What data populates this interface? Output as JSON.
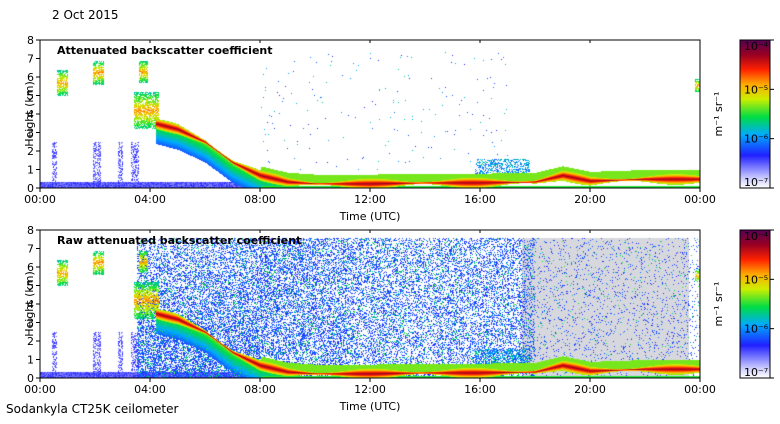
{
  "header": {
    "date": "2 Oct 2015"
  },
  "footer": {
    "instrument": "Sodankyla CT25K ceilometer"
  },
  "chart_data": [
    {
      "type": "heatmap",
      "title": "Attenuated backscatter coefficient",
      "xlabel": "Time (UTC)",
      "ylabel": "Height (km)",
      "xticks": [
        "00:00",
        "04:00",
        "08:00",
        "12:00",
        "16:00",
        "20:00",
        "00:00"
      ],
      "xlim_hours": [
        0,
        24
      ],
      "yticks": [
        0,
        1,
        2,
        3,
        4,
        5,
        6,
        7,
        8
      ],
      "ylim": [
        0,
        8
      ],
      "colorbar": {
        "label": "m⁻¹ sr⁻¹",
        "scale": "log",
        "range": [
          1e-07,
          0.0001
        ],
        "ticks": [
          "10⁻⁷",
          "10⁻⁶",
          "10⁻⁵",
          "10⁻⁴"
        ]
      },
      "features": {
        "boundary_layer": [
          {
            "t": 4.2,
            "h": 3.5
          },
          {
            "t": 5.0,
            "h": 3.2
          },
          {
            "t": 6.0,
            "h": 2.5
          },
          {
            "t": 7.0,
            "h": 1.4
          },
          {
            "t": 8.0,
            "h": 0.7
          },
          {
            "t": 9.0,
            "h": 0.35
          },
          {
            "t": 10.0,
            "h": 0.25
          },
          {
            "t": 12.0,
            "h": 0.25
          },
          {
            "t": 14.0,
            "h": 0.3
          },
          {
            "t": 16.0,
            "h": 0.3
          },
          {
            "t": 18.0,
            "h": 0.35
          },
          {
            "t": 19.0,
            "h": 0.7
          },
          {
            "t": 20.0,
            "h": 0.4
          },
          {
            "t": 22.0,
            "h": 0.5
          },
          {
            "t": 24.0,
            "h": 0.5
          }
        ],
        "cloud_patches": [
          {
            "t0": 0.6,
            "t1": 1.0,
            "h0": 5.0,
            "h1": 6.4
          },
          {
            "t0": 1.9,
            "t1": 2.3,
            "h0": 5.6,
            "h1": 6.9
          },
          {
            "t0": 3.6,
            "t1": 3.9,
            "h0": 5.7,
            "h1": 6.9
          },
          {
            "t0": 3.4,
            "t1": 4.3,
            "h0": 3.2,
            "h1": 5.2
          },
          {
            "t0": 23.8,
            "t1": 24.0,
            "h0": 5.2,
            "h1": 5.9
          }
        ]
      }
    },
    {
      "type": "heatmap",
      "title": "Raw attenuated backscatter coefficient",
      "xlabel": "Time (UTC)",
      "ylabel": "Height (km)",
      "xticks": [
        "00:00",
        "04:00",
        "08:00",
        "12:00",
        "16:00",
        "20:00",
        "00:00"
      ],
      "xlim_hours": [
        0,
        24
      ],
      "yticks": [
        0,
        1,
        2,
        3,
        4,
        5,
        6,
        7,
        8
      ],
      "ylim": [
        0,
        8
      ],
      "colorbar": {
        "label": "m⁻¹ sr⁻¹",
        "scale": "log",
        "range": [
          1e-07,
          0.0001
        ],
        "ticks": [
          "10⁻⁷",
          "10⁻⁶",
          "10⁻⁵",
          "10⁻⁴"
        ]
      }
    }
  ]
}
